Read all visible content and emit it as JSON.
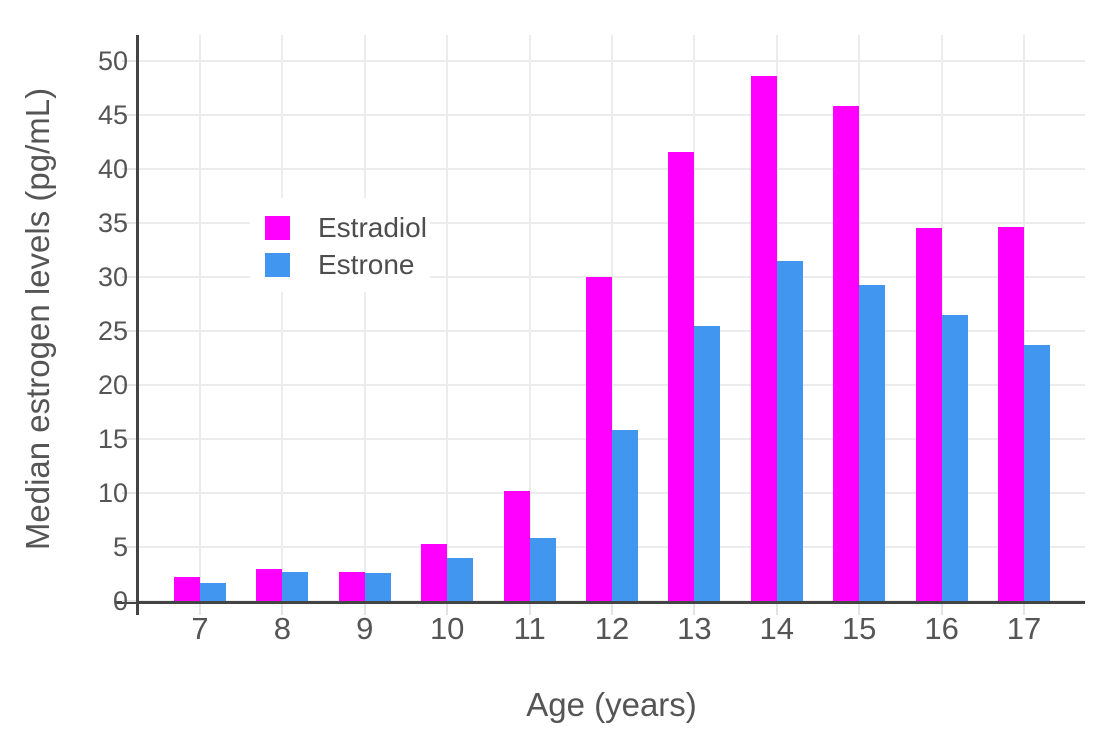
{
  "chart_data": {
    "type": "bar",
    "title": "",
    "xlabel": "Age (years)",
    "ylabel": "Median estrogen levels (pg/mL)",
    "categories": [
      "7",
      "8",
      "9",
      "10",
      "11",
      "12",
      "13",
      "14",
      "15",
      "16",
      "17"
    ],
    "series": [
      {
        "name": "Estradiol",
        "color": "#FF00FF",
        "values": [
          2.2,
          3.0,
          2.7,
          5.3,
          10.2,
          30.0,
          41.6,
          48.6,
          45.8,
          34.5,
          34.6
        ]
      },
      {
        "name": "Estrone",
        "color": "#4196F0",
        "values": [
          1.7,
          2.7,
          2.6,
          4.0,
          5.8,
          15.8,
          25.5,
          31.5,
          29.3,
          26.5,
          23.7
        ]
      }
    ],
    "yticks": [
      0,
      5,
      10,
      15,
      20,
      25,
      30,
      35,
      40,
      45,
      50
    ],
    "ylim": [
      0,
      52.4
    ],
    "grid": true,
    "legend_position": "inside-top-left"
  },
  "colors": {
    "background": "#FFFFFF",
    "gridline": "#ECECEC",
    "axis_line": "#444444",
    "tick": "#E3E3E3",
    "text": "#555555",
    "estradiol": "#FF00FF",
    "estrone": "#4196F0"
  }
}
